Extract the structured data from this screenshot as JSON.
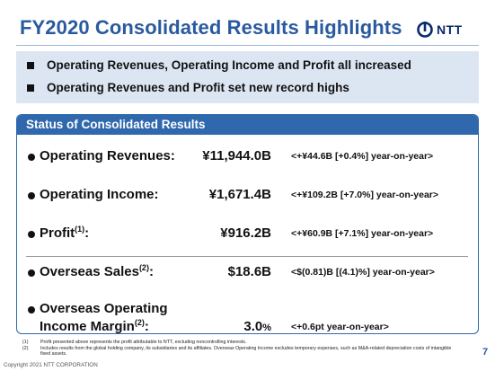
{
  "header": {
    "title": "FY2020 Consolidated Results Highlights",
    "logo_text": "NTT",
    "logo_icon": "ntt-loop-icon"
  },
  "highlights": [
    "Operating Revenues, Operating Income and Profit all increased",
    "Operating Revenues and Profit set new record highs"
  ],
  "panel": {
    "title": "Status of Consolidated Results",
    "rows": [
      {
        "label": "Operating Revenues:",
        "value": "¥11,944.0B",
        "yoy": "<+¥44.6B [+0.4%] year-on-year>"
      },
      {
        "label": "Operating Income:",
        "value": "¥1,671.4B",
        "yoy": "<+¥109.2B [+7.0%] year-on-year>"
      },
      {
        "label": "Profit",
        "sup": "(1)",
        "label_suffix": ":",
        "value": "¥916.2B",
        "yoy": "<+¥60.9B [+7.1%] year-on-year>"
      },
      {
        "label": "Overseas Sales",
        "sup": "(2)",
        "label_suffix": ":",
        "value": "$18.6B",
        "yoy": "<$(0.81)B [(4.1)%] year-on-year>"
      },
      {
        "label_line1": "Overseas Operating",
        "label_line2": "Income Margin",
        "sup": "(2)",
        "label_suffix": ":",
        "value": "3.0",
        "value_unit": "%",
        "yoy": "<+0.6pt year-on-year>"
      }
    ]
  },
  "footnotes": [
    {
      "num": "(1)",
      "text": "Profit presented above represents the profit attributable to NTT, excluding noncontrolling interests."
    },
    {
      "num": "(2)",
      "text": "Includes results from the global holding company, its subsidiaries and its affiliates. Overseas Operating Income excludes temporary expenses, such as M&A-related depreciation costs of intangible fixed assets."
    }
  ],
  "copyright": "Copyright 2021 NTT CORPORATION",
  "page_number": "7",
  "colors": {
    "title": "#2a5a9e",
    "panel_border": "#2f68ad",
    "highlight_bg": "#dce6f3"
  }
}
